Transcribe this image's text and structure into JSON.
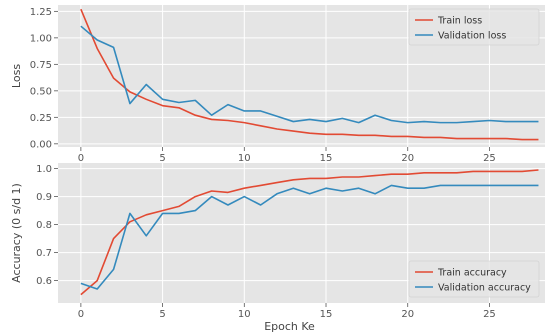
{
  "chart_data": [
    {
      "type": "line",
      "xlabel": "",
      "ylabel": "Loss",
      "xlim": [
        -1.4,
        28.4
      ],
      "ylim": [
        -0.03,
        1.31
      ],
      "xticks": [
        0,
        5,
        10,
        15,
        20,
        25
      ],
      "yticks": [
        0.0,
        0.25,
        0.5,
        0.75,
        1.0,
        1.25
      ],
      "yticklabels": [
        "0.00",
        "0.25",
        "0.50",
        "0.75",
        "1.00",
        "1.25"
      ],
      "grid": true,
      "legend_position": "top-right",
      "x": [
        0,
        1,
        2,
        3,
        4,
        5,
        6,
        7,
        8,
        9,
        10,
        11,
        12,
        13,
        14,
        15,
        16,
        17,
        18,
        19,
        20,
        21,
        22,
        23,
        24,
        25,
        26,
        27,
        28
      ],
      "series": [
        {
          "name": "Train loss",
          "color": "#e24a33",
          "values": [
            1.27,
            0.9,
            0.62,
            0.49,
            0.42,
            0.36,
            0.34,
            0.27,
            0.23,
            0.22,
            0.2,
            0.17,
            0.14,
            0.12,
            0.1,
            0.09,
            0.09,
            0.08,
            0.08,
            0.07,
            0.07,
            0.06,
            0.06,
            0.05,
            0.05,
            0.05,
            0.05,
            0.04,
            0.04
          ]
        },
        {
          "name": "Validation loss",
          "color": "#348abd",
          "values": [
            1.11,
            0.98,
            0.91,
            0.38,
            0.56,
            0.42,
            0.39,
            0.41,
            0.27,
            0.37,
            0.31,
            0.31,
            0.26,
            0.21,
            0.23,
            0.21,
            0.24,
            0.2,
            0.27,
            0.22,
            0.2,
            0.21,
            0.2,
            0.2,
            0.21,
            0.22,
            0.21,
            0.21,
            0.21
          ]
        }
      ]
    },
    {
      "type": "line",
      "xlabel": "Epoch Ke",
      "ylabel": "Accuracy (0 s/d 1)",
      "xlim": [
        -1.4,
        28.4
      ],
      "ylim": [
        0.52,
        1.02
      ],
      "xticks": [
        0,
        5,
        10,
        15,
        20,
        25
      ],
      "yticks": [
        0.6,
        0.7,
        0.8,
        0.9,
        1.0
      ],
      "yticklabels": [
        "0.6",
        "0.7",
        "0.8",
        "0.9",
        "1.0"
      ],
      "grid": true,
      "legend_position": "bottom-right",
      "x": [
        0,
        1,
        2,
        3,
        4,
        5,
        6,
        7,
        8,
        9,
        10,
        11,
        12,
        13,
        14,
        15,
        16,
        17,
        18,
        19,
        20,
        21,
        22,
        23,
        24,
        25,
        26,
        27,
        28
      ],
      "series": [
        {
          "name": "Train accuracy",
          "color": "#e24a33",
          "values": [
            0.55,
            0.6,
            0.75,
            0.81,
            0.835,
            0.85,
            0.865,
            0.9,
            0.92,
            0.915,
            0.93,
            0.94,
            0.95,
            0.96,
            0.965,
            0.965,
            0.97,
            0.97,
            0.975,
            0.98,
            0.98,
            0.985,
            0.985,
            0.985,
            0.99,
            0.99,
            0.99,
            0.99,
            0.995
          ]
        },
        {
          "name": "Validation accuracy",
          "color": "#348abd",
          "values": [
            0.59,
            0.57,
            0.64,
            0.84,
            0.76,
            0.84,
            0.84,
            0.85,
            0.9,
            0.87,
            0.9,
            0.87,
            0.91,
            0.93,
            0.91,
            0.93,
            0.92,
            0.93,
            0.91,
            0.94,
            0.93,
            0.93,
            0.94,
            0.94,
            0.94,
            0.94,
            0.94,
            0.94,
            0.94
          ]
        }
      ]
    }
  ]
}
